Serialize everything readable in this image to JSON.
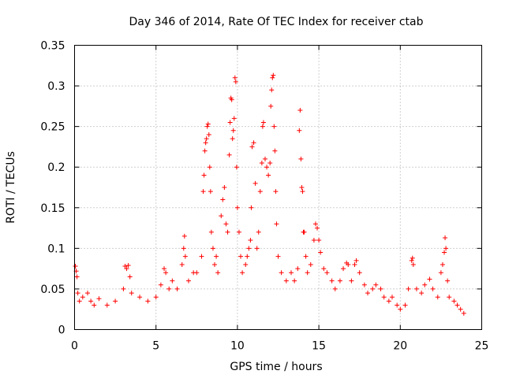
{
  "chart_data": {
    "type": "scatter",
    "title": "Day 346 of 2014, Rate Of TEC Index for receiver ctab",
    "xlabel": "GPS time / hours",
    "ylabel": "ROTI / TECUs",
    "xlim": [
      0,
      25
    ],
    "ylim": [
      0,
      0.35
    ],
    "xticks": [
      0,
      5,
      10,
      15,
      20,
      25
    ],
    "xtick_labels": [
      "0",
      "5",
      "10",
      "15",
      "20",
      "25"
    ],
    "yticks": [
      0,
      0.05,
      0.1,
      0.15,
      0.2,
      0.25,
      0.3,
      0.35
    ],
    "ytick_labels": [
      "0",
      "0.05",
      "0.1",
      "0.15",
      "0.2",
      "0.25",
      "0.3",
      "0.35"
    ],
    "grid": true,
    "marker": "+",
    "color": "#ff0000",
    "series": [
      {
        "name": "ROTI",
        "points": [
          [
            0.05,
            0.078
          ],
          [
            0.1,
            0.072
          ],
          [
            0.15,
            0.065
          ],
          [
            0.2,
            0.045
          ],
          [
            0.3,
            0.035
          ],
          [
            0.5,
            0.04
          ],
          [
            0.8,
            0.045
          ],
          [
            1.0,
            0.035
          ],
          [
            1.2,
            0.03
          ],
          [
            1.5,
            0.038
          ],
          [
            2.0,
            0.03
          ],
          [
            2.5,
            0.035
          ],
          [
            3.0,
            0.05
          ],
          [
            3.1,
            0.078
          ],
          [
            3.2,
            0.075
          ],
          [
            3.3,
            0.079
          ],
          [
            3.4,
            0.065
          ],
          [
            3.5,
            0.045
          ],
          [
            4.0,
            0.04
          ],
          [
            4.5,
            0.035
          ],
          [
            5.0,
            0.04
          ],
          [
            5.3,
            0.055
          ],
          [
            5.5,
            0.075
          ],
          [
            5.6,
            0.07
          ],
          [
            5.8,
            0.05
          ],
          [
            6.0,
            0.06
          ],
          [
            6.3,
            0.05
          ],
          [
            6.6,
            0.08
          ],
          [
            6.7,
            0.1
          ],
          [
            6.75,
            0.115
          ],
          [
            6.8,
            0.09
          ],
          [
            7.0,
            0.06
          ],
          [
            7.3,
            0.07
          ],
          [
            7.5,
            0.07
          ],
          [
            7.8,
            0.09
          ],
          [
            7.9,
            0.17
          ],
          [
            7.95,
            0.19
          ],
          [
            8.0,
            0.22
          ],
          [
            8.05,
            0.23
          ],
          [
            8.1,
            0.235
          ],
          [
            8.15,
            0.25
          ],
          [
            8.2,
            0.253
          ],
          [
            8.25,
            0.24
          ],
          [
            8.3,
            0.2
          ],
          [
            8.35,
            0.17
          ],
          [
            8.4,
            0.12
          ],
          [
            8.5,
            0.1
          ],
          [
            8.6,
            0.08
          ],
          [
            8.7,
            0.09
          ],
          [
            8.8,
            0.07
          ],
          [
            9.0,
            0.14
          ],
          [
            9.1,
            0.16
          ],
          [
            9.2,
            0.175
          ],
          [
            9.3,
            0.13
          ],
          [
            9.4,
            0.12
          ],
          [
            9.5,
            0.215
          ],
          [
            9.55,
            0.255
          ],
          [
            9.6,
            0.285
          ],
          [
            9.65,
            0.283
          ],
          [
            9.7,
            0.235
          ],
          [
            9.75,
            0.245
          ],
          [
            9.8,
            0.26
          ],
          [
            9.85,
            0.31
          ],
          [
            9.9,
            0.305
          ],
          [
            9.95,
            0.2
          ],
          [
            10.0,
            0.15
          ],
          [
            10.1,
            0.12
          ],
          [
            10.2,
            0.09
          ],
          [
            10.3,
            0.07
          ],
          [
            10.5,
            0.08
          ],
          [
            10.6,
            0.09
          ],
          [
            10.7,
            0.1
          ],
          [
            10.8,
            0.11
          ],
          [
            10.85,
            0.15
          ],
          [
            10.9,
            0.225
          ],
          [
            11.0,
            0.23
          ],
          [
            11.1,
            0.18
          ],
          [
            11.2,
            0.1
          ],
          [
            11.3,
            0.12
          ],
          [
            11.4,
            0.17
          ],
          [
            11.5,
            0.205
          ],
          [
            11.55,
            0.25
          ],
          [
            11.6,
            0.255
          ],
          [
            11.7,
            0.21
          ],
          [
            11.8,
            0.2
          ],
          [
            11.9,
            0.19
          ],
          [
            12.0,
            0.205
          ],
          [
            12.05,
            0.275
          ],
          [
            12.1,
            0.295
          ],
          [
            12.15,
            0.31
          ],
          [
            12.2,
            0.313
          ],
          [
            12.25,
            0.25
          ],
          [
            12.3,
            0.22
          ],
          [
            12.35,
            0.17
          ],
          [
            12.4,
            0.13
          ],
          [
            12.5,
            0.09
          ],
          [
            12.7,
            0.07
          ],
          [
            13.0,
            0.06
          ],
          [
            13.3,
            0.07
          ],
          [
            13.5,
            0.06
          ],
          [
            13.7,
            0.075
          ],
          [
            13.8,
            0.245
          ],
          [
            13.85,
            0.27
          ],
          [
            13.9,
            0.21
          ],
          [
            13.95,
            0.175
          ],
          [
            14.0,
            0.17
          ],
          [
            14.05,
            0.12
          ],
          [
            14.1,
            0.12
          ],
          [
            14.2,
            0.09
          ],
          [
            14.3,
            0.07
          ],
          [
            14.5,
            0.08
          ],
          [
            14.7,
            0.11
          ],
          [
            14.8,
            0.13
          ],
          [
            14.9,
            0.125
          ],
          [
            15.0,
            0.11
          ],
          [
            15.1,
            0.095
          ],
          [
            15.3,
            0.075
          ],
          [
            15.5,
            0.07
          ],
          [
            15.8,
            0.06
          ],
          [
            16.0,
            0.05
          ],
          [
            16.3,
            0.06
          ],
          [
            16.5,
            0.075
          ],
          [
            16.7,
            0.082
          ],
          [
            16.8,
            0.08
          ],
          [
            17.0,
            0.06
          ],
          [
            17.2,
            0.08
          ],
          [
            17.3,
            0.085
          ],
          [
            17.5,
            0.07
          ],
          [
            17.8,
            0.055
          ],
          [
            18.0,
            0.045
          ],
          [
            18.3,
            0.05
          ],
          [
            18.5,
            0.055
          ],
          [
            18.8,
            0.05
          ],
          [
            19.0,
            0.04
          ],
          [
            19.3,
            0.035
          ],
          [
            19.5,
            0.04
          ],
          [
            19.8,
            0.03
          ],
          [
            20.0,
            0.025
          ],
          [
            20.3,
            0.03
          ],
          [
            20.5,
            0.05
          ],
          [
            20.7,
            0.085
          ],
          [
            20.75,
            0.088
          ],
          [
            20.8,
            0.08
          ],
          [
            21.0,
            0.05
          ],
          [
            21.3,
            0.045
          ],
          [
            21.5,
            0.055
          ],
          [
            21.8,
            0.062
          ],
          [
            22.0,
            0.05
          ],
          [
            22.3,
            0.04
          ],
          [
            22.5,
            0.07
          ],
          [
            22.6,
            0.08
          ],
          [
            22.7,
            0.095
          ],
          [
            22.75,
            0.113
          ],
          [
            22.8,
            0.1
          ],
          [
            22.9,
            0.06
          ],
          [
            23.0,
            0.04
          ],
          [
            23.3,
            0.035
          ],
          [
            23.5,
            0.03
          ],
          [
            23.7,
            0.025
          ],
          [
            23.9,
            0.02
          ]
        ]
      }
    ]
  }
}
